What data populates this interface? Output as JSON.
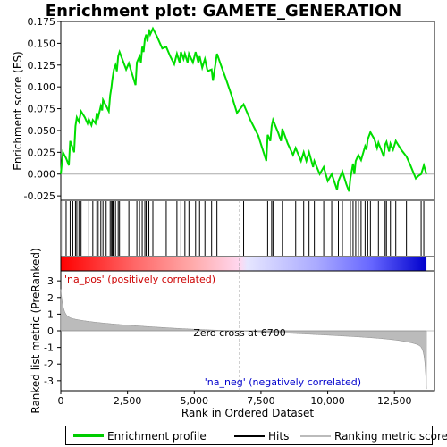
{
  "chart_data": {
    "type": "line",
    "title": "Enrichment plot: GAMETE_GENERATION",
    "ylabel_top": "Enrichment score (ES)",
    "ylabel_bottom": "Ranked list metric (PreRanked)",
    "xlabel": "Rank in Ordered Dataset",
    "es_ylim": [
      -0.03,
      0.175
    ],
    "es_yticks": [
      "-0.025",
      "0.000",
      "0.025",
      "0.050",
      "0.075",
      "0.100",
      "0.125",
      "0.150",
      "0.175"
    ],
    "es_ytick_values": [
      -0.025,
      0,
      0.025,
      0.05,
      0.075,
      0.1,
      0.125,
      0.15,
      0.175
    ],
    "metric_ylim": [
      -3.6,
      3.6
    ],
    "metric_yticks": [
      "3",
      "2",
      "1",
      "0",
      "-1",
      "-2",
      "-3"
    ],
    "metric_ytick_values": [
      3,
      2,
      1,
      0,
      -1,
      -2,
      -3
    ],
    "xlim": [
      0,
      14000
    ],
    "xticks": [
      "0",
      "2,500",
      "5,000",
      "7,500",
      "10,000",
      "12,500"
    ],
    "xtick_values": [
      0,
      2500,
      5000,
      7500,
      10000,
      12500
    ],
    "n_total": 13700,
    "zero_cross": 6700,
    "zero_cross_label": "Zero cross at 6700",
    "pos_label": "'na_pos' (positively correlated)",
    "neg_label": "'na_neg' (negatively correlated)",
    "hits": [
      80,
      200,
      350,
      450,
      550,
      600,
      680,
      760,
      1050,
      1200,
      1350,
      1400,
      1500,
      1580,
      1700,
      1850,
      1900,
      1930,
      1960,
      1990,
      2050,
      2150,
      2200,
      2550,
      2850,
      2950,
      3050,
      3150,
      3200,
      3300,
      3450,
      3950,
      4350,
      4500,
      4650,
      4800,
      5050,
      5200,
      5400,
      5650,
      5850,
      6850,
      7750,
      7900,
      7950,
      8300,
      8800,
      9100,
      9300,
      9500,
      9850,
      10150,
      10400,
      10550,
      10850,
      10950,
      11050,
      11150,
      11250,
      11400,
      11500,
      11600,
      11900,
      12150,
      12200,
      12350,
      12550,
      12950,
      13500,
      13600
    ],
    "es_points": [
      [
        0,
        0.0
      ],
      [
        80,
        0.025
      ],
      [
        200,
        0.018
      ],
      [
        300,
        0.01
      ],
      [
        350,
        0.038
      ],
      [
        450,
        0.03
      ],
      [
        500,
        0.025
      ],
      [
        550,
        0.055
      ],
      [
        600,
        0.065
      ],
      [
        680,
        0.06
      ],
      [
        760,
        0.072
      ],
      [
        900,
        0.065
      ],
      [
        1000,
        0.058
      ],
      [
        1050,
        0.063
      ],
      [
        1150,
        0.056
      ],
      [
        1200,
        0.062
      ],
      [
        1300,
        0.058
      ],
      [
        1350,
        0.07
      ],
      [
        1400,
        0.065
      ],
      [
        1500,
        0.078
      ],
      [
        1550,
        0.073
      ],
      [
        1580,
        0.085
      ],
      [
        1700,
        0.078
      ],
      [
        1800,
        0.072
      ],
      [
        1850,
        0.09
      ],
      [
        1900,
        0.1
      ],
      [
        1930,
        0.108
      ],
      [
        1960,
        0.114
      ],
      [
        1990,
        0.12
      ],
      [
        2050,
        0.125
      ],
      [
        2100,
        0.118
      ],
      [
        2150,
        0.135
      ],
      [
        2200,
        0.14
      ],
      [
        2350,
        0.128
      ],
      [
        2450,
        0.12
      ],
      [
        2550,
        0.127
      ],
      [
        2700,
        0.112
      ],
      [
        2800,
        0.102
      ],
      [
        2850,
        0.128
      ],
      [
        2950,
        0.135
      ],
      [
        3000,
        0.128
      ],
      [
        3050,
        0.146
      ],
      [
        3100,
        0.14
      ],
      [
        3150,
        0.155
      ],
      [
        3200,
        0.16
      ],
      [
        3250,
        0.152
      ],
      [
        3300,
        0.166
      ],
      [
        3350,
        0.16
      ],
      [
        3450,
        0.167
      ],
      [
        3600,
        0.158
      ],
      [
        3800,
        0.144
      ],
      [
        3950,
        0.146
      ],
      [
        4100,
        0.135
      ],
      [
        4250,
        0.126
      ],
      [
        4350,
        0.138
      ],
      [
        4450,
        0.128
      ],
      [
        4500,
        0.14
      ],
      [
        4600,
        0.132
      ],
      [
        4650,
        0.138
      ],
      [
        4750,
        0.128
      ],
      [
        4800,
        0.138
      ],
      [
        4950,
        0.128
      ],
      [
        5050,
        0.14
      ],
      [
        5150,
        0.128
      ],
      [
        5200,
        0.135
      ],
      [
        5300,
        0.122
      ],
      [
        5400,
        0.132
      ],
      [
        5500,
        0.118
      ],
      [
        5650,
        0.12
      ],
      [
        5700,
        0.107
      ],
      [
        5850,
        0.138
      ],
      [
        6000,
        0.125
      ],
      [
        6200,
        0.108
      ],
      [
        6400,
        0.09
      ],
      [
        6600,
        0.07
      ],
      [
        6850,
        0.08
      ],
      [
        7100,
        0.062
      ],
      [
        7400,
        0.044
      ],
      [
        7700,
        0.015
      ],
      [
        7750,
        0.045
      ],
      [
        7850,
        0.038
      ],
      [
        7900,
        0.055
      ],
      [
        7950,
        0.062
      ],
      [
        8150,
        0.047
      ],
      [
        8250,
        0.038
      ],
      [
        8300,
        0.052
      ],
      [
        8500,
        0.035
      ],
      [
        8700,
        0.022
      ],
      [
        8800,
        0.03
      ],
      [
        9000,
        0.015
      ],
      [
        9100,
        0.025
      ],
      [
        9200,
        0.015
      ],
      [
        9300,
        0.025
      ],
      [
        9450,
        0.008
      ],
      [
        9500,
        0.015
      ],
      [
        9700,
        0.0
      ],
      [
        9850,
        0.008
      ],
      [
        10000,
        -0.008
      ],
      [
        10150,
        0.0
      ],
      [
        10350,
        -0.018
      ],
      [
        10400,
        -0.008
      ],
      [
        10550,
        0.003
      ],
      [
        10700,
        -0.012
      ],
      [
        10800,
        -0.02
      ],
      [
        10850,
        -0.005
      ],
      [
        10950,
        0.012
      ],
      [
        11000,
        0.0
      ],
      [
        11050,
        0.015
      ],
      [
        11150,
        0.022
      ],
      [
        11250,
        0.016
      ],
      [
        11400,
        0.032
      ],
      [
        11450,
        0.028
      ],
      [
        11500,
        0.04
      ],
      [
        11600,
        0.048
      ],
      [
        11750,
        0.04
      ],
      [
        11850,
        0.03
      ],
      [
        11900,
        0.036
      ],
      [
        12100,
        0.02
      ],
      [
        12150,
        0.034
      ],
      [
        12200,
        0.037
      ],
      [
        12300,
        0.026
      ],
      [
        12350,
        0.035
      ],
      [
        12450,
        0.028
      ],
      [
        12550,
        0.038
      ],
      [
        12750,
        0.028
      ],
      [
        12950,
        0.02
      ],
      [
        13100,
        0.01
      ],
      [
        13300,
        -0.005
      ],
      [
        13400,
        -0.002
      ],
      [
        13500,
        0.0
      ],
      [
        13600,
        0.01
      ],
      [
        13700,
        0.0
      ]
    ],
    "legend": {
      "items": [
        "Enrichment profile",
        "Hits",
        "Ranking metric scores"
      ],
      "colors": [
        "#00cc00",
        "#000000",
        "#bbbbbb"
      ]
    },
    "colors": {
      "es_line": "#00dd00",
      "pos_text": "#cc0000",
      "neg_text": "#0000cc",
      "zero_line": "#999999",
      "metric_fill": "#bbbbbb"
    }
  }
}
